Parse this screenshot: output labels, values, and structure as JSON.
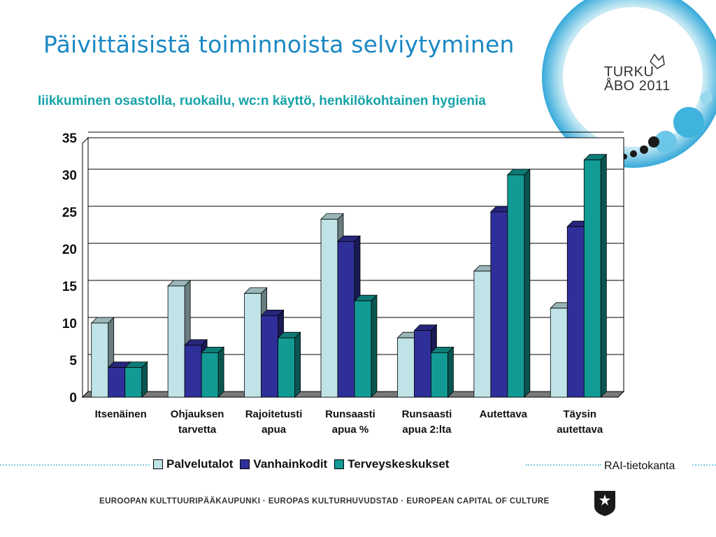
{
  "slide": {
    "title": "Päivittäisistä toiminnoista selviytyminen",
    "subtitle": "Iiikkuminen osastolla, ruokailu, wc:n käyttö, henkilökohtainen hygienia",
    "source": "RAI-tietokanta",
    "footer": "EUROOPAN KULTTUURIPÄÄKAUPUNKI · EUROPAS KULTURHUVUDSTAD · EUROPEAN CAPITAL OF CULTURE",
    "logo_line1": "TURKU",
    "logo_line2": "ÅBO 2011"
  },
  "colors": {
    "title": "#1a88c4",
    "subtitle": "#16a3a8",
    "palvelutalot": "#bfe3e6",
    "vanhainkodit": "#2f2f9a",
    "terveyskeskukset": "#129a94"
  },
  "icons": {
    "logo": "turku-abo-2011-logo-icon",
    "crest": "turku-crest-icon"
  },
  "chart_data": {
    "type": "bar",
    "title": "",
    "xlabel": "",
    "ylabel": "",
    "ylim": [
      0,
      35
    ],
    "yticks": [
      "0",
      "5",
      "10",
      "15",
      "20",
      "25",
      "30",
      "35"
    ],
    "grid": true,
    "legend_position": "bottom",
    "categories": [
      [
        "Itsenäinen"
      ],
      [
        "Ohjauksen",
        "tarvetta"
      ],
      [
        "Rajoitetusti",
        "apua"
      ],
      [
        "Runsaasti",
        "apua %"
      ],
      [
        "Runsaasti",
        "apua 2:lta"
      ],
      [
        "Autettava"
      ],
      [
        "Täysin",
        "autettava"
      ]
    ],
    "series": [
      {
        "name": "Palvelutalot",
        "values": [
          10,
          15,
          14,
          24,
          8,
          17,
          12
        ]
      },
      {
        "name": "Vanhainkodit",
        "values": [
          4,
          7,
          11,
          21,
          9,
          25,
          23
        ]
      },
      {
        "name": "Terveyskeskukset",
        "values": [
          4,
          6,
          8,
          13,
          6,
          30,
          32
        ]
      }
    ]
  }
}
